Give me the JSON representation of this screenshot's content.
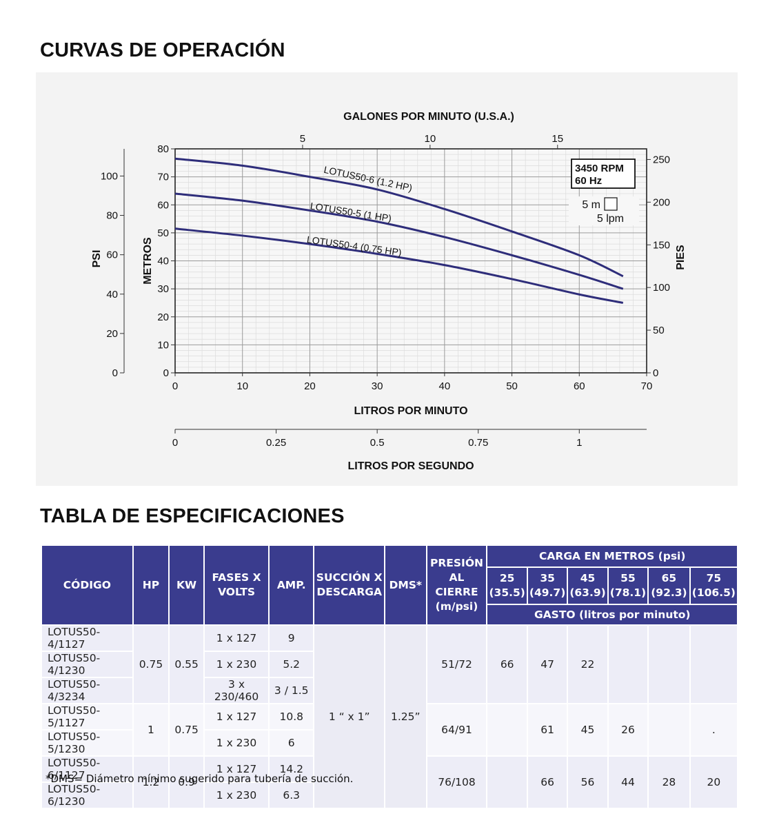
{
  "titles": {
    "curves": "CURVAS DE OPERACIÓN",
    "table": "TABLA DE ESPECIFICACIONES"
  },
  "chart_data": {
    "type": "line",
    "x_label": "LITROS POR MINUTO",
    "x_range": [
      0,
      70
    ],
    "x_ticks": [
      "0",
      "10",
      "20",
      "30",
      "40",
      "50",
      "60",
      "70"
    ],
    "x_top_label": "GALONES POR MINUTO (U.S.A.)",
    "x_top_ticks": [
      "5",
      "10",
      "15"
    ],
    "x_bottom_label": "LITROS POR SEGUNDO",
    "x_bottom_ticks": [
      "0",
      "0.25",
      "0.5",
      "0.75",
      "1"
    ],
    "y_label": "METROS",
    "y_range": [
      0,
      80
    ],
    "y_ticks": [
      "0",
      "10",
      "20",
      "30",
      "40",
      "50",
      "60",
      "70",
      "80"
    ],
    "y_left_label": "PSI",
    "y_left_ticks": [
      "0",
      "20",
      "40",
      "60",
      "80",
      "100"
    ],
    "y_right_label": "PIES",
    "y_right_ticks": [
      "0",
      "50",
      "100",
      "150",
      "200",
      "250"
    ],
    "grid": true,
    "info_box": [
      "3450 RPM",
      "60 Hz"
    ],
    "scale_note": [
      "5 m",
      "5 lpm"
    ],
    "series": [
      {
        "name": "LOTUS50-6 (1.2 HP)",
        "x": [
          0,
          10,
          20,
          30,
          40,
          50,
          60,
          66.5
        ],
        "y": [
          76.5,
          74,
          70,
          65.5,
          58.5,
          50.5,
          42,
          34.5
        ]
      },
      {
        "name": "LOTUS50-5 (1 HP)",
        "x": [
          0,
          10,
          20,
          30,
          40,
          50,
          60,
          66.5
        ],
        "y": [
          64,
          61.5,
          58,
          54,
          48.5,
          42,
          35,
          30
        ]
      },
      {
        "name": "LOTUS50-4 (0.75 HP)",
        "x": [
          0,
          10,
          20,
          30,
          40,
          50,
          60,
          66.5
        ],
        "y": [
          51.5,
          49,
          46,
          42.5,
          38.5,
          33.5,
          28,
          25
        ]
      }
    ]
  },
  "table": {
    "headers": {
      "codigo": "CÓDIGO",
      "hp": "HP",
      "kw": "KW",
      "fases_1": "FASES X",
      "fases_2": "VOLTS",
      "amp": "AMP.",
      "succion_1": "SUCCIÓN X",
      "succion_2": "DESCARGA",
      "dms": "DMS*",
      "presion_1": "PRESIÓN",
      "presion_2": "AL CIERRE",
      "presion_3": "(m/psi)",
      "carga": "CARGA EN METROS (psi)",
      "gasto": "GASTO (litros por minuto)",
      "carga_cols": [
        {
          "m": "25",
          "psi": "(35.5)"
        },
        {
          "m": "35",
          "psi": "(49.7)"
        },
        {
          "m": "45",
          "psi": "(63.9)"
        },
        {
          "m": "55",
          "psi": "(78.1)"
        },
        {
          "m": "65",
          "psi": "(92.3)"
        },
        {
          "m": "75",
          "psi": "(106.5)"
        }
      ]
    },
    "shared": {
      "succion": "1 “ x 1”",
      "dms": "1.25”"
    },
    "groups": [
      {
        "hp": "0.75",
        "kw": "0.55",
        "presion": "51/72",
        "gasto": [
          "66",
          "47",
          "22",
          "",
          "",
          ""
        ],
        "rows": [
          {
            "code": "LOTUS50-4/1127",
            "volts": "1 x 127",
            "amp": "9"
          },
          {
            "code": "LOTUS50-4/1230",
            "volts": "1 x 230",
            "amp": "5.2"
          },
          {
            "code": "LOTUS50-4/3234",
            "volts": "3 x 230/460",
            "amp": "3 / 1.5"
          }
        ]
      },
      {
        "hp": "1",
        "kw": "0.75",
        "presion": "64/91",
        "gasto": [
          "",
          "61",
          "45",
          "26",
          "",
          "."
        ],
        "rows": [
          {
            "code": "LOTUS50-5/1127",
            "volts": "1 x 127",
            "amp": "10.8"
          },
          {
            "code": "LOTUS50-5/1230",
            "volts": "1 x 230",
            "amp": "6"
          }
        ]
      },
      {
        "hp": "1.2",
        "kw": "0.9",
        "presion": "76/108",
        "gasto": [
          "",
          "66",
          "56",
          "44",
          "28",
          "20"
        ],
        "rows": [
          {
            "code": "LOTUS50-6/1127",
            "volts": "1 x 127",
            "amp": "14.2"
          },
          {
            "code": "LOTUS50-6/1230",
            "volts": "1 x 230",
            "amp": "6.3"
          }
        ]
      }
    ],
    "footnote": "*DMS= Diámetro mínimo sugerido para tubería de succión."
  },
  "colors": {
    "curve": "#2e2d7a",
    "header_bg": "#3a3c8e",
    "row_a": "#ededf7",
    "row_b": "#f6f6fb",
    "chart_bg": "#f3f3f3"
  }
}
